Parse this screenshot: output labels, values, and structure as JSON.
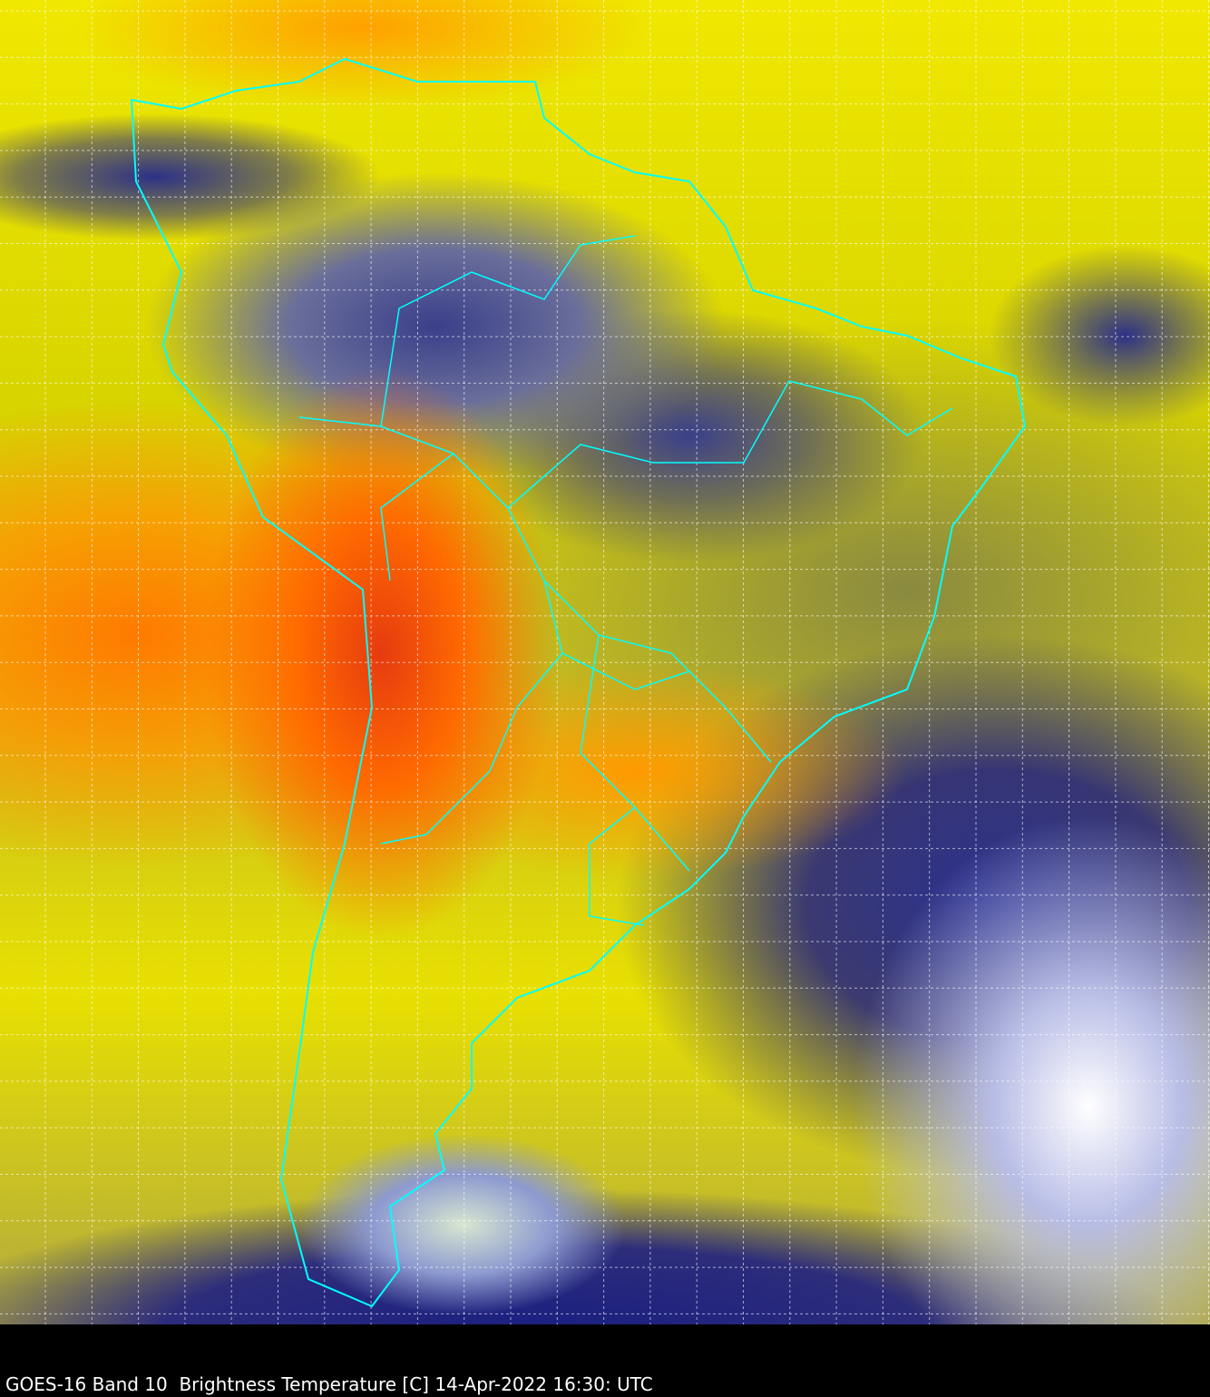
{
  "caption": "GOES-16 Band 10  Brightness Temperature [C] 14-Apr-2022 16:30: UTC",
  "map": {
    "region": "South America",
    "colors": {
      "coastline": "#00ffff",
      "grid": "#ffffff",
      "warm": "#ff6a00",
      "hot": "#e63b10",
      "mid": "#f0e800",
      "cold": "#1a1f80",
      "coldest": "#ffffff"
    },
    "gridlines": true
  }
}
